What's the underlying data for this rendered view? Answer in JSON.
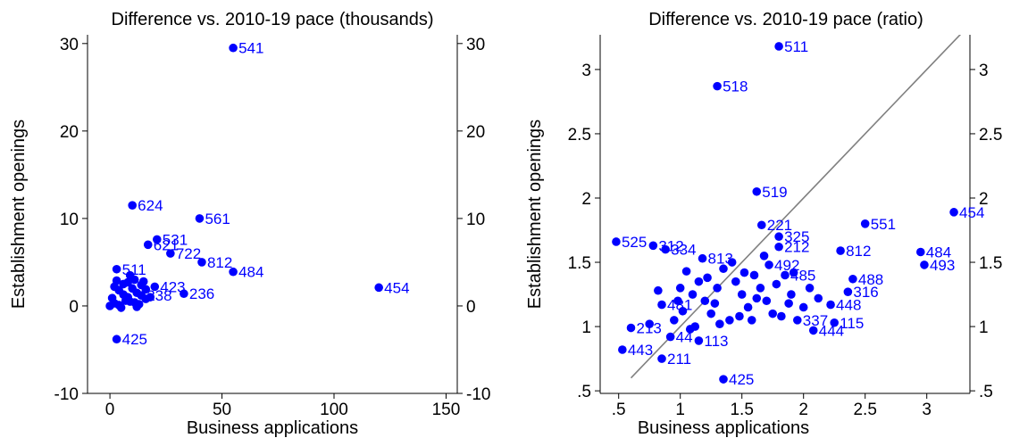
{
  "chart_data": [
    {
      "type": "scatter",
      "title": "Difference vs. 2010-19 pace (thousands)",
      "xlabel": "Business applications",
      "ylabel": "Establishment openings",
      "xlim": [
        -10,
        155
      ],
      "ylim": [
        -10,
        31
      ],
      "x_ticks": [
        0,
        50,
        100,
        150
      ],
      "y_ticks": [
        -10,
        0,
        10,
        20,
        30
      ],
      "x_tick_labels": [
        "0",
        "50",
        "100",
        "150"
      ],
      "y_tick_labels": [
        "-10",
        "0",
        "10",
        "20",
        "30"
      ],
      "colors": {
        "points": "#0000ff",
        "axes": "#000000"
      },
      "points": [
        {
          "x": 55,
          "y": 29.5,
          "label": "541"
        },
        {
          "x": 10,
          "y": 11.5,
          "label": "624"
        },
        {
          "x": 40,
          "y": 10.0,
          "label": "561"
        },
        {
          "x": 21,
          "y": 7.6,
          "label": "531"
        },
        {
          "x": 17,
          "y": 7.0,
          "label": "621"
        },
        {
          "x": 27,
          "y": 6.0,
          "label": "722"
        },
        {
          "x": 41,
          "y": 5.0,
          "label": "812"
        },
        {
          "x": 55,
          "y": 3.9,
          "label": "484"
        },
        {
          "x": 120,
          "y": 2.1,
          "label": "454"
        },
        {
          "x": 33,
          "y": 1.4,
          "label": "236"
        },
        {
          "x": 3,
          "y": -3.8,
          "label": "425"
        },
        {
          "x": 3,
          "y": 4.2,
          "label": "511"
        },
        {
          "x": 20,
          "y": 2.2,
          "label": "423"
        },
        {
          "x": 14,
          "y": 1.2,
          "label": "238"
        },
        {
          "x": 2,
          "y": 0.3,
          "label": ""
        },
        {
          "x": 4,
          "y": 1.8,
          "label": ""
        },
        {
          "x": 6,
          "y": 2.5,
          "label": ""
        },
        {
          "x": 8,
          "y": 1.0,
          "label": ""
        },
        {
          "x": 9,
          "y": 0.5,
          "label": ""
        },
        {
          "x": 11,
          "y": 3.0,
          "label": ""
        },
        {
          "x": 12,
          "y": 1.5,
          "label": ""
        },
        {
          "x": 13,
          "y": 0.2,
          "label": ""
        },
        {
          "x": 15,
          "y": 2.8,
          "label": ""
        },
        {
          "x": 16,
          "y": 0.8,
          "label": ""
        },
        {
          "x": 5,
          "y": -0.2,
          "label": ""
        },
        {
          "x": 7,
          "y": 0.6,
          "label": ""
        },
        {
          "x": 1,
          "y": 0.9,
          "label": ""
        },
        {
          "x": 3,
          "y": 2.9,
          "label": ""
        },
        {
          "x": 10,
          "y": 2.0,
          "label": ""
        },
        {
          "x": 18,
          "y": 1.0,
          "label": ""
        },
        {
          "x": 0,
          "y": 0.0,
          "label": ""
        },
        {
          "x": 6,
          "y": 1.3,
          "label": ""
        },
        {
          "x": 4,
          "y": 0.1,
          "label": ""
        },
        {
          "x": 9,
          "y": 3.5,
          "label": ""
        },
        {
          "x": 12,
          "y": -0.1,
          "label": ""
        },
        {
          "x": 2,
          "y": 2.2,
          "label": ""
        },
        {
          "x": 8,
          "y": 2.7,
          "label": ""
        },
        {
          "x": 14,
          "y": 2.4,
          "label": ""
        },
        {
          "x": 16,
          "y": 1.9,
          "label": ""
        },
        {
          "x": 11,
          "y": 0.4,
          "label": ""
        }
      ]
    },
    {
      "type": "scatter",
      "title": "Difference vs. 2010-19 pace (ratio)",
      "xlabel": "Business applications",
      "ylabel": "Establishment openings",
      "xlim": [
        0.35,
        3.35
      ],
      "ylim": [
        0.48,
        3.27
      ],
      "x_ticks": [
        0.5,
        1,
        1.5,
        2,
        2.5,
        3
      ],
      "y_ticks": [
        0.5,
        1,
        1.5,
        2,
        2.5,
        3
      ],
      "x_tick_labels": [
        ".5",
        "1",
        "1.5",
        "2",
        "2.5",
        "3"
      ],
      "y_tick_labels": [
        ".5",
        "1",
        "1.5",
        "2",
        "2.5",
        "3"
      ],
      "colors": {
        "points": "#0000ff",
        "axes": "#000000",
        "reference_line": "#808080"
      },
      "reference_line": {
        "from": [
          0.6,
          0.6
        ],
        "to": [
          3.35,
          3.35
        ]
      },
      "points": [
        {
          "x": 1.8,
          "y": 3.18,
          "label": "511"
        },
        {
          "x": 1.3,
          "y": 2.87,
          "label": "518"
        },
        {
          "x": 1.62,
          "y": 2.05,
          "label": "519"
        },
        {
          "x": 3.22,
          "y": 1.89,
          "label": "454"
        },
        {
          "x": 2.5,
          "y": 1.8,
          "label": "551"
        },
        {
          "x": 1.66,
          "y": 1.79,
          "label": "221"
        },
        {
          "x": 0.48,
          "y": 1.66,
          "label": "525"
        },
        {
          "x": 0.78,
          "y": 1.63,
          "label": "312"
        },
        {
          "x": 0.88,
          "y": 1.6,
          "label": "334"
        },
        {
          "x": 1.8,
          "y": 1.7,
          "label": "325"
        },
        {
          "x": 2.3,
          "y": 1.59,
          "label": "812"
        },
        {
          "x": 2.95,
          "y": 1.58,
          "label": "484"
        },
        {
          "x": 1.18,
          "y": 1.53,
          "label": "813"
        },
        {
          "x": 2.98,
          "y": 1.48,
          "label": "493"
        },
        {
          "x": 2.4,
          "y": 1.37,
          "label": "488"
        },
        {
          "x": 2.36,
          "y": 1.27,
          "label": "316"
        },
        {
          "x": 2.22,
          "y": 1.17,
          "label": "448"
        },
        {
          "x": 2.25,
          "y": 1.03,
          "label": "115"
        },
        {
          "x": 2.08,
          "y": 0.97,
          "label": "444"
        },
        {
          "x": 0.85,
          "y": 1.17,
          "label": "481"
        },
        {
          "x": 0.6,
          "y": 0.99,
          "label": "213"
        },
        {
          "x": 0.53,
          "y": 0.82,
          "label": "443"
        },
        {
          "x": 0.85,
          "y": 0.75,
          "label": "211"
        },
        {
          "x": 1.35,
          "y": 0.59,
          "label": "425"
        },
        {
          "x": 1.15,
          "y": 0.89,
          "label": "113"
        },
        {
          "x": 0.92,
          "y": 0.92,
          "label": "44"
        },
        {
          "x": 1.85,
          "y": 1.4,
          "label": "485"
        },
        {
          "x": 1.8,
          "y": 1.62,
          "label": "212"
        },
        {
          "x": 1.72,
          "y": 1.48,
          "label": "492"
        },
        {
          "x": 1.95,
          "y": 1.05,
          "label": "337"
        },
        {
          "x": 1.0,
          "y": 1.3,
          "label": ""
        },
        {
          "x": 1.05,
          "y": 1.43,
          "label": ""
        },
        {
          "x": 1.1,
          "y": 1.25,
          "label": ""
        },
        {
          "x": 1.15,
          "y": 1.35,
          "label": ""
        },
        {
          "x": 1.2,
          "y": 1.2,
          "label": ""
        },
        {
          "x": 1.25,
          "y": 1.1,
          "label": ""
        },
        {
          "x": 1.3,
          "y": 1.3,
          "label": ""
        },
        {
          "x": 1.35,
          "y": 1.45,
          "label": ""
        },
        {
          "x": 1.4,
          "y": 1.05,
          "label": ""
        },
        {
          "x": 1.45,
          "y": 1.35,
          "label": ""
        },
        {
          "x": 1.5,
          "y": 1.25,
          "label": ""
        },
        {
          "x": 1.55,
          "y": 1.15,
          "label": ""
        },
        {
          "x": 1.6,
          "y": 1.4,
          "label": ""
        },
        {
          "x": 1.65,
          "y": 1.3,
          "label": ""
        },
        {
          "x": 1.7,
          "y": 1.2,
          "label": ""
        },
        {
          "x": 1.75,
          "y": 1.1,
          "label": ""
        },
        {
          "x": 1.9,
          "y": 1.25,
          "label": ""
        },
        {
          "x": 2.0,
          "y": 1.15,
          "label": ""
        },
        {
          "x": 2.05,
          "y": 1.3,
          "label": ""
        },
        {
          "x": 0.95,
          "y": 1.05,
          "label": ""
        },
        {
          "x": 1.02,
          "y": 1.12,
          "label": ""
        },
        {
          "x": 1.12,
          "y": 1.0,
          "label": ""
        },
        {
          "x": 1.22,
          "y": 1.38,
          "label": ""
        },
        {
          "x": 1.32,
          "y": 1.02,
          "label": ""
        },
        {
          "x": 1.42,
          "y": 1.5,
          "label": ""
        },
        {
          "x": 1.52,
          "y": 1.42,
          "label": ""
        },
        {
          "x": 1.58,
          "y": 1.05,
          "label": ""
        },
        {
          "x": 1.68,
          "y": 1.55,
          "label": ""
        },
        {
          "x": 1.78,
          "y": 1.33,
          "label": ""
        },
        {
          "x": 1.88,
          "y": 1.18,
          "label": ""
        },
        {
          "x": 2.12,
          "y": 1.22,
          "label": ""
        },
        {
          "x": 0.75,
          "y": 1.02,
          "label": ""
        },
        {
          "x": 0.82,
          "y": 1.28,
          "label": ""
        },
        {
          "x": 1.08,
          "y": 0.98,
          "label": ""
        },
        {
          "x": 1.28,
          "y": 1.18,
          "label": ""
        },
        {
          "x": 1.48,
          "y": 1.08,
          "label": ""
        },
        {
          "x": 1.62,
          "y": 1.22,
          "label": ""
        },
        {
          "x": 1.82,
          "y": 1.08,
          "label": ""
        },
        {
          "x": 1.92,
          "y": 1.42,
          "label": ""
        },
        {
          "x": 0.98,
          "y": 1.2,
          "label": ""
        }
      ]
    }
  ]
}
